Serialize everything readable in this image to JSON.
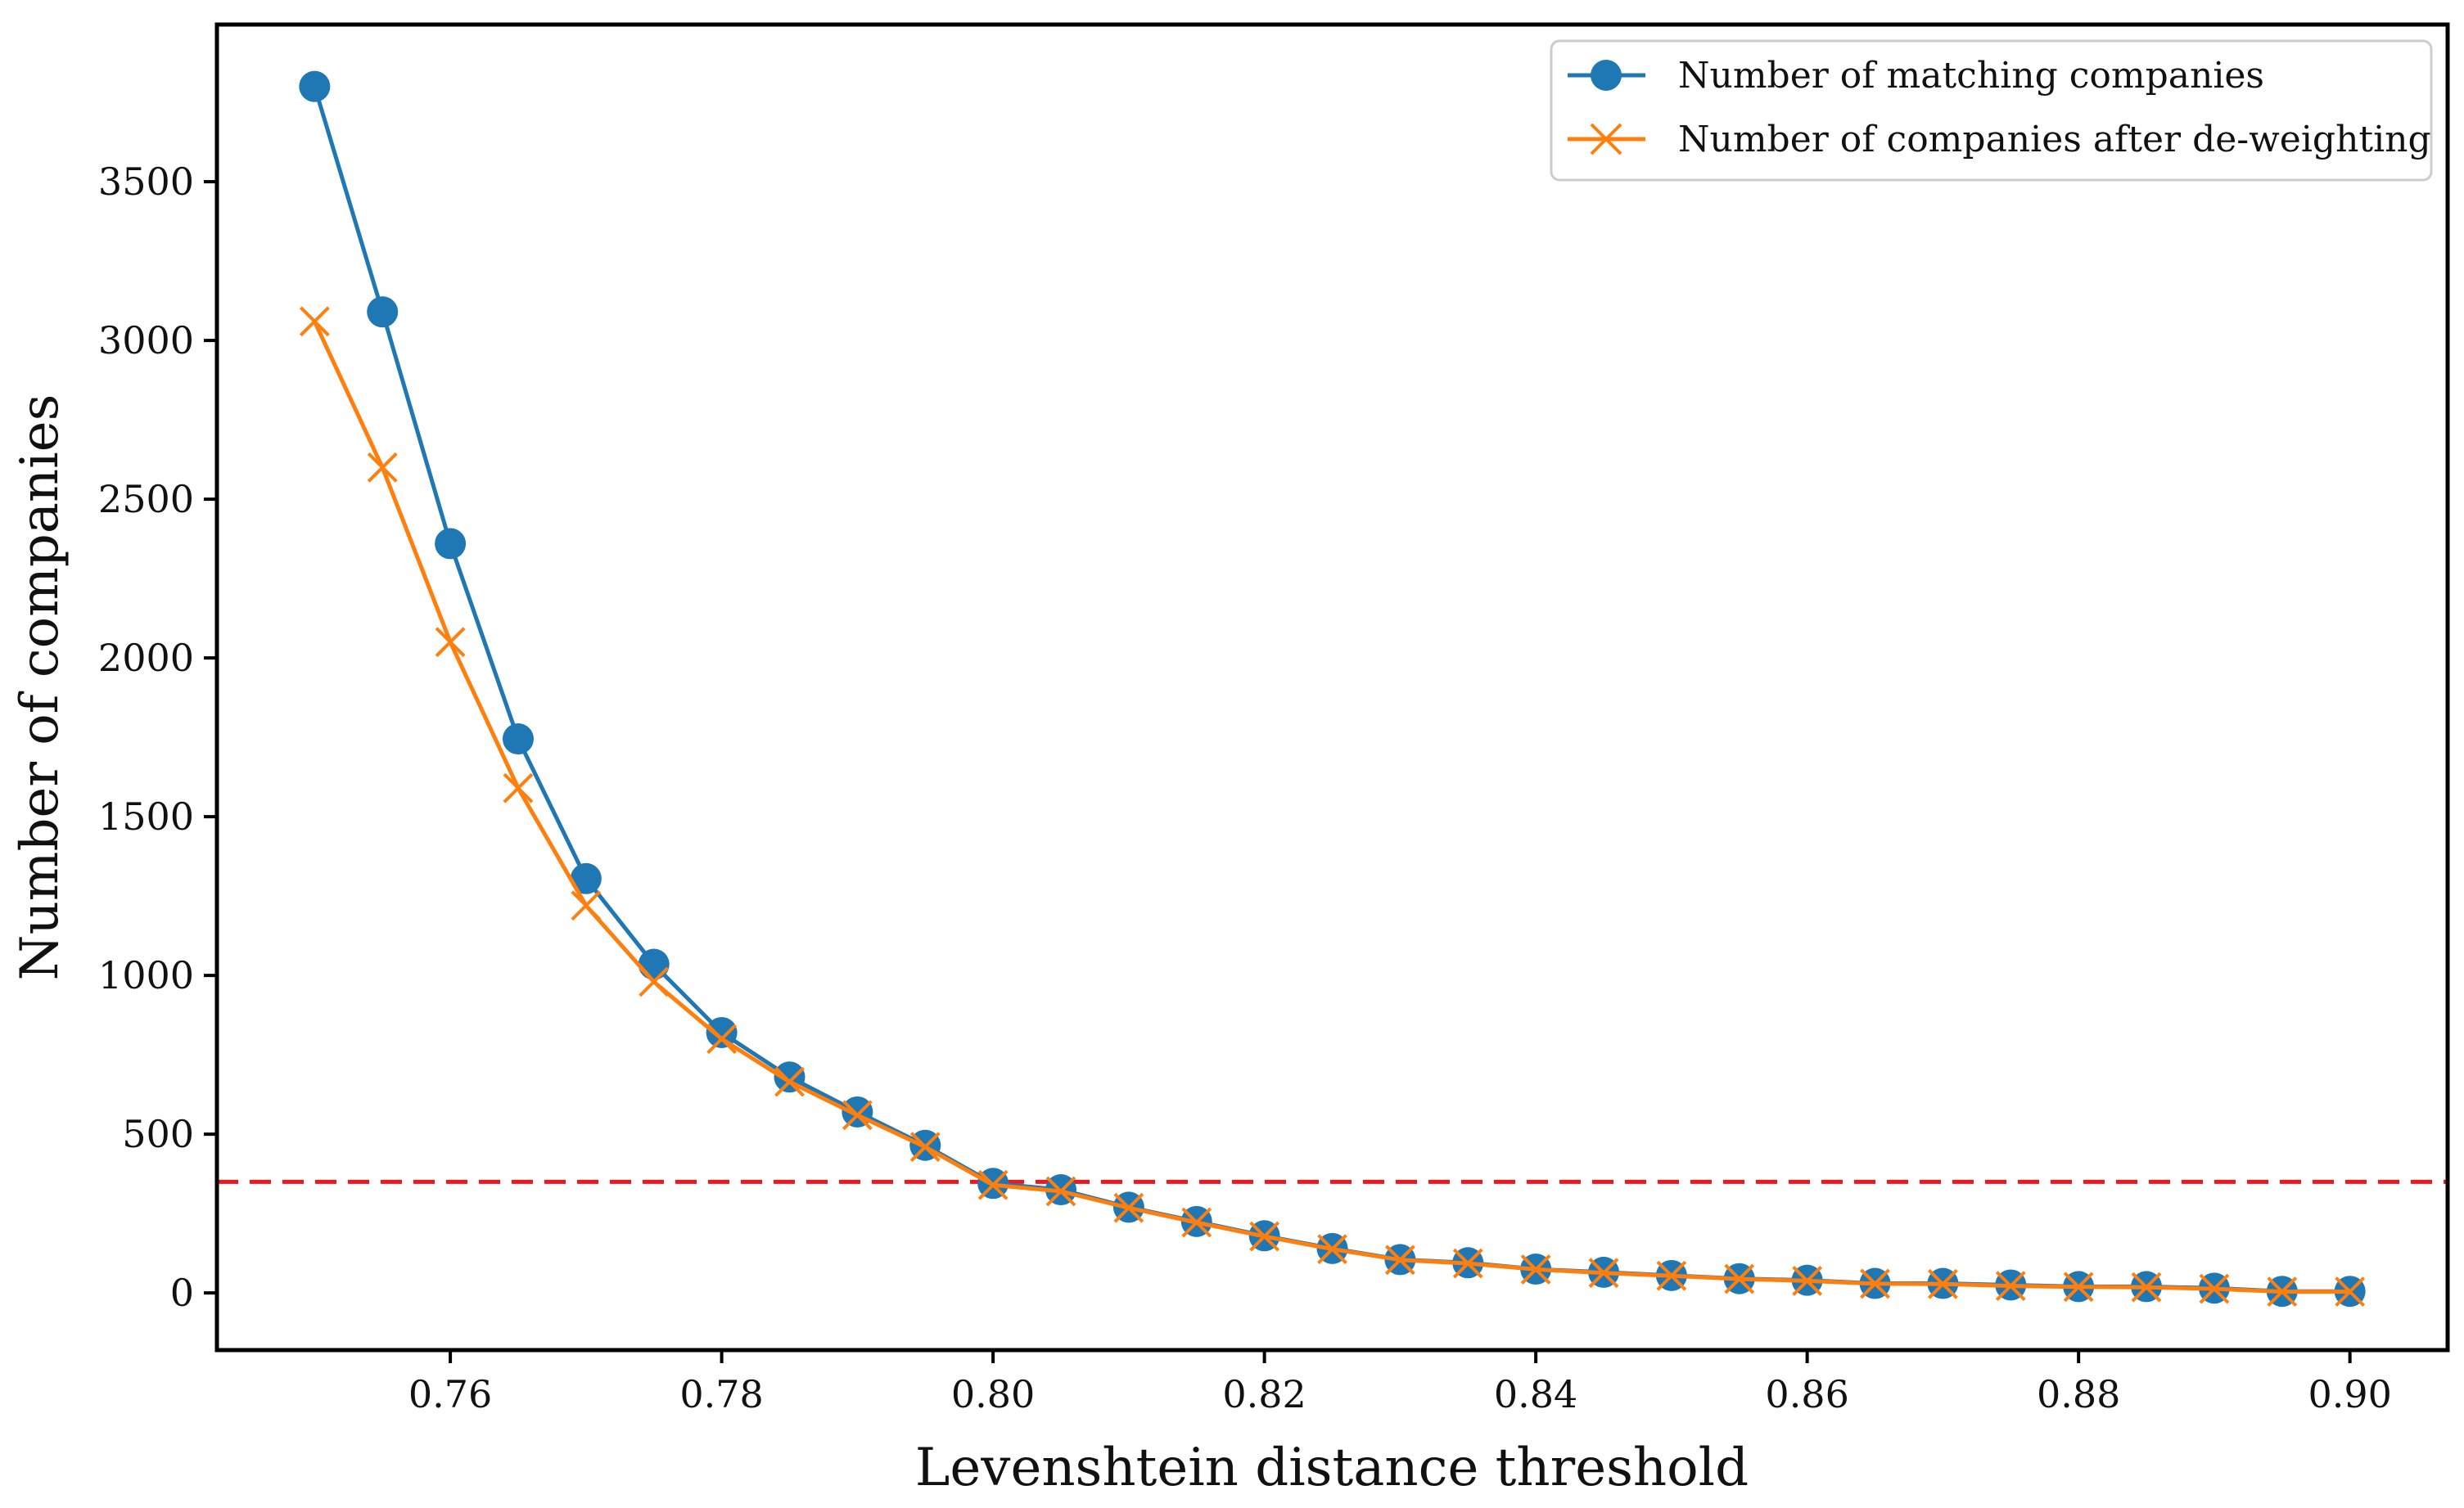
{
  "chart_data": {
    "type": "line",
    "title": "",
    "xlabel": "Levenshtein distance threshold",
    "ylabel": "Number of companies",
    "xlim": [
      0.7428,
      0.9072
    ],
    "ylim": [
      -180,
      3995
    ],
    "xticks": [
      0.76,
      0.78,
      0.8,
      0.82,
      0.84,
      0.86,
      0.88,
      0.9
    ],
    "xtick_labels": [
      "0.76",
      "0.78",
      "0.80",
      "0.82",
      "0.84",
      "0.86",
      "0.88",
      "0.90"
    ],
    "yticks": [
      0,
      500,
      1000,
      1500,
      2000,
      2500,
      3000,
      3500
    ],
    "ytick_labels": [
      "0",
      "500",
      "1000",
      "1500",
      "2000",
      "2500",
      "3000",
      "3500"
    ],
    "grid": false,
    "legend_position": "top-right",
    "x": [
      0.75,
      0.755,
      0.76,
      0.765,
      0.77,
      0.775,
      0.78,
      0.785,
      0.79,
      0.795,
      0.8,
      0.805,
      0.81,
      0.815,
      0.82,
      0.825,
      0.83,
      0.835,
      0.84,
      0.845,
      0.85,
      0.855,
      0.86,
      0.865,
      0.87,
      0.875,
      0.88,
      0.885,
      0.89,
      0.895,
      0.9
    ],
    "series": [
      {
        "name": "Number of matching companies",
        "color": "#1f77b4",
        "marker": "circle",
        "values": [
          3800,
          3090,
          2360,
          1745,
          1305,
          1035,
          820,
          680,
          570,
          465,
          345,
          325,
          270,
          225,
          180,
          140,
          105,
          95,
          75,
          65,
          55,
          45,
          40,
          30,
          30,
          25,
          20,
          20,
          15,
          5,
          5
        ]
      },
      {
        "name": "Number of companies after de-weighting",
        "color": "#ff7f0e",
        "marker": "x",
        "values": [
          3060,
          2600,
          2050,
          1590,
          1220,
          980,
          800,
          665,
          560,
          460,
          340,
          320,
          268,
          222,
          178,
          138,
          104,
          93,
          74,
          63,
          54,
          44,
          38,
          29,
          28,
          22,
          19,
          18,
          13,
          4,
          4
        ]
      }
    ],
    "reference_line": {
      "orientation": "horizontal",
      "y": 350,
      "style": "dashed",
      "color": "#e8191f"
    }
  }
}
